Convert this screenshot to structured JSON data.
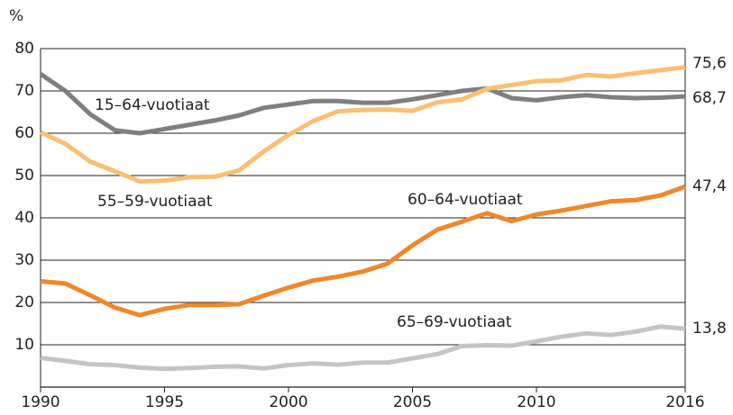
{
  "chart_data": {
    "type": "line",
    "y_label": "%",
    "x": [
      1990,
      1991,
      1992,
      1993,
      1994,
      1995,
      1996,
      1997,
      1998,
      1999,
      2000,
      2001,
      2002,
      2003,
      2004,
      2005,
      2006,
      2007,
      2008,
      2009,
      2010,
      2011,
      2012,
      2013,
      2014,
      2015,
      2016
    ],
    "xlim": [
      1990,
      2016
    ],
    "xticks": [
      1990,
      1995,
      2000,
      2005,
      2010,
      2016
    ],
    "ylim": [
      0,
      80
    ],
    "yticks": [
      10,
      20,
      30,
      40,
      50,
      60,
      70,
      80
    ],
    "grid": true,
    "series": [
      {
        "name": "15–64-vuotiaat",
        "color": "#7f7f7f",
        "values": [
          74,
          70,
          64.5,
          60.7,
          60,
          61,
          62,
          63,
          64.2,
          66,
          66.8,
          67.6,
          67.6,
          67.2,
          67.2,
          68,
          69,
          70,
          70.6,
          68.3,
          67.8,
          68.5,
          69,
          68.5,
          68.3,
          68.4,
          68.7
        ],
        "value_labels": [
          null,
          null,
          null,
          null,
          null,
          null,
          null,
          null,
          null,
          null,
          null,
          null,
          null,
          null,
          null,
          null,
          null,
          null,
          null,
          null,
          null,
          null,
          null,
          null,
          null,
          null,
          "68,7"
        ]
      },
      {
        "name": "55–59-vuotiaat",
        "color": "#fbbf72",
        "values": [
          60.2,
          57.5,
          53.3,
          51,
          48.6,
          48.8,
          49.6,
          49.7,
          51.2,
          55.7,
          59.6,
          62.9,
          65.2,
          65.5,
          65.6,
          65.3,
          67.3,
          68,
          70.5,
          71.4,
          72.3,
          72.5,
          73.8,
          73.4,
          74.2,
          74.9,
          75.6
        ],
        "value_labels": [
          null,
          null,
          null,
          null,
          null,
          null,
          null,
          null,
          null,
          null,
          null,
          null,
          null,
          null,
          null,
          null,
          null,
          null,
          null,
          null,
          null,
          null,
          null,
          null,
          null,
          null,
          "75,6"
        ]
      },
      {
        "name": "60–64-vuotiaat",
        "color": "#f0872a",
        "values": [
          25,
          24.5,
          21.7,
          18.8,
          17,
          18.5,
          19.4,
          19.4,
          19.6,
          21.6,
          23.5,
          25.2,
          26.1,
          27.3,
          29.2,
          33.5,
          37.2,
          39.1,
          41.1,
          39.2,
          40.8,
          41.7,
          42.8,
          43.9,
          44.2,
          45.3,
          47.4
        ],
        "value_labels": [
          null,
          null,
          null,
          null,
          null,
          null,
          null,
          null,
          null,
          null,
          null,
          null,
          null,
          null,
          null,
          null,
          null,
          null,
          null,
          null,
          null,
          null,
          null,
          null,
          null,
          null,
          "47,4"
        ]
      },
      {
        "name": "65–69-vuotiaat",
        "color": "#c4c4c4",
        "values": [
          6.9,
          6.2,
          5.4,
          5.2,
          4.6,
          4.3,
          4.5,
          4.8,
          4.9,
          4.4,
          5.2,
          5.6,
          5.3,
          5.8,
          5.8,
          6.8,
          7.8,
          9.7,
          9.9,
          9.8,
          10.8,
          11.9,
          12.7,
          12.3,
          13.1,
          14.3,
          13.8
        ],
        "value_labels": [
          null,
          null,
          null,
          null,
          null,
          null,
          null,
          null,
          null,
          null,
          null,
          null,
          null,
          null,
          null,
          null,
          null,
          null,
          null,
          null,
          null,
          null,
          null,
          null,
          null,
          null,
          "13,8"
        ]
      }
    ]
  }
}
